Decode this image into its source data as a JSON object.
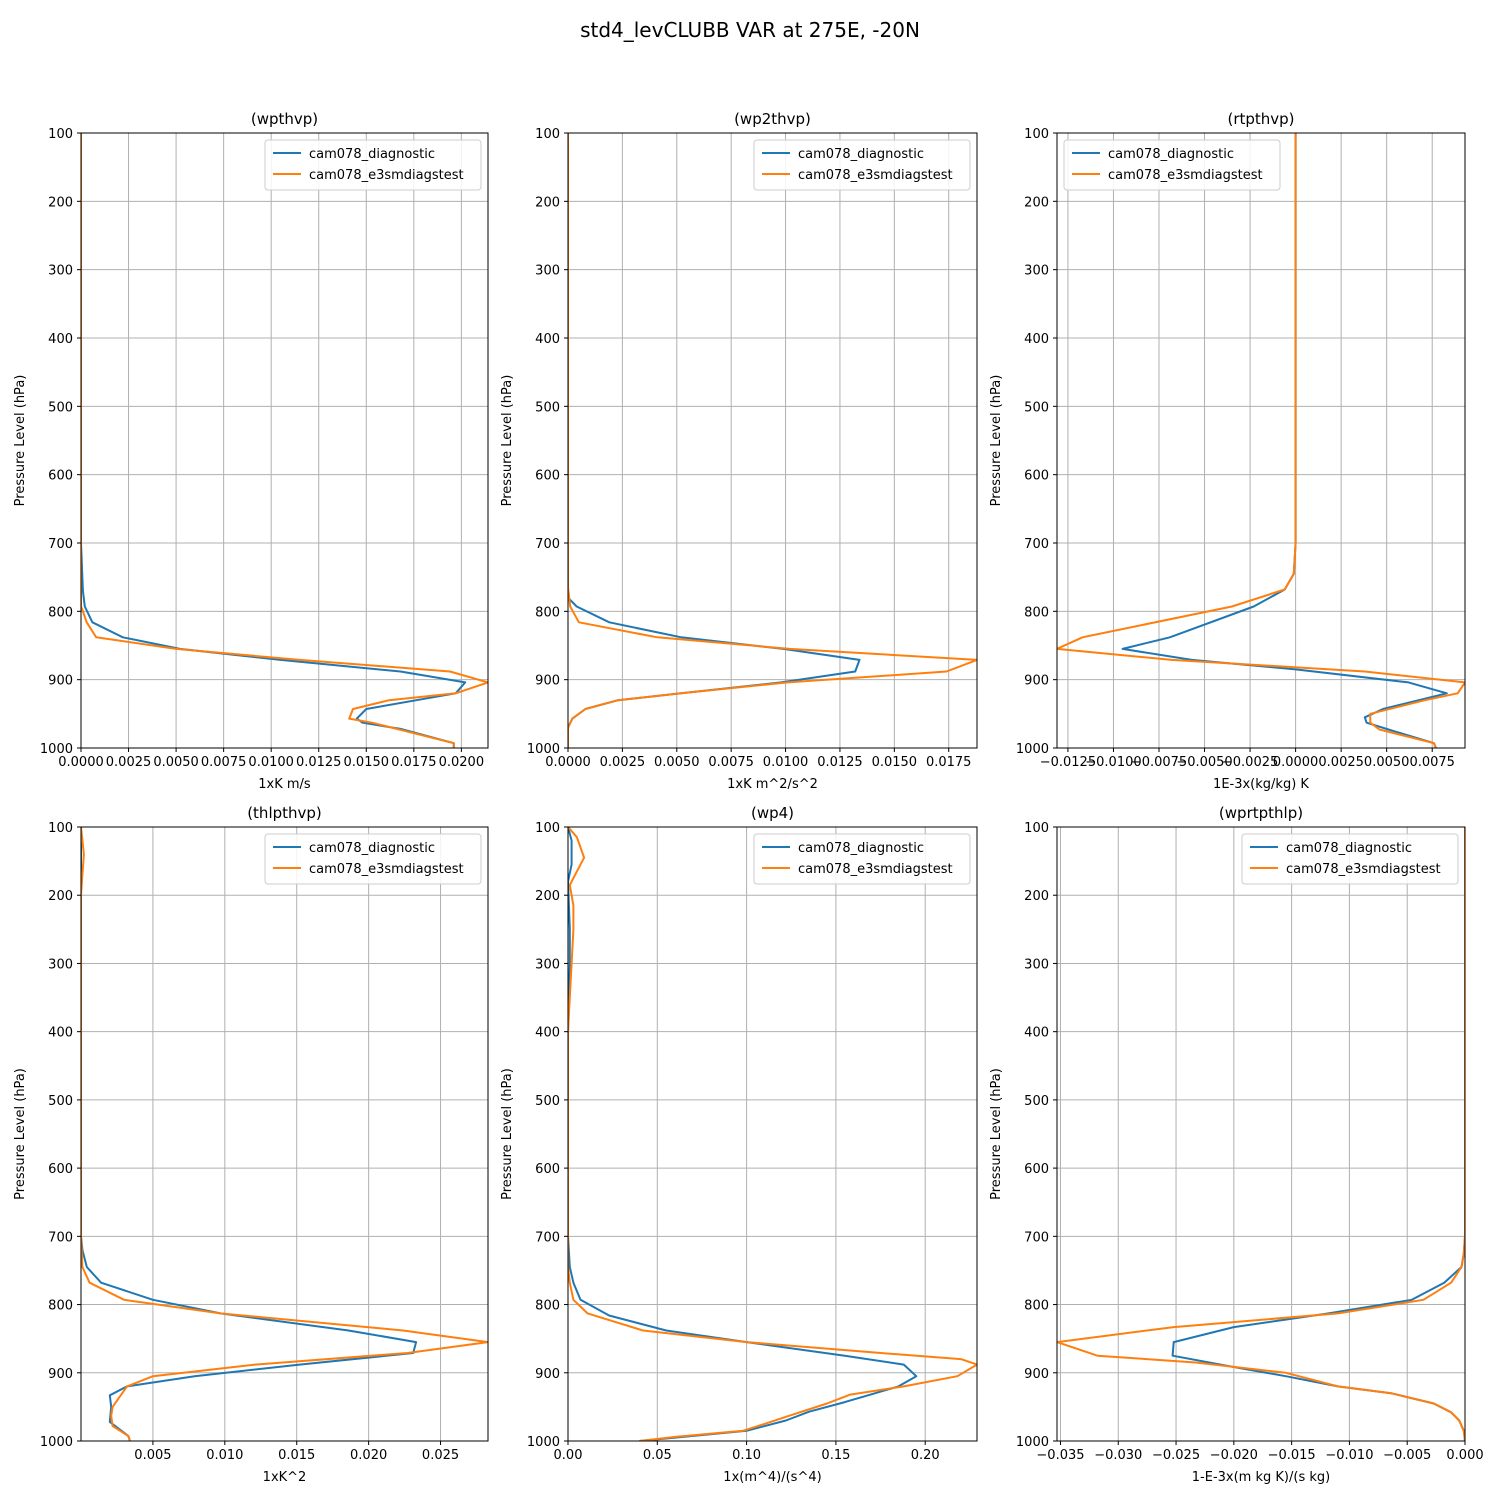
{
  "figure": {
    "suptitle": "std4_levCLUBB VAR at 275E, -20N",
    "colors": {
      "cam078_diagnostic": "#1f77b4",
      "cam078_e3smdiagstest": "#ff7f0e"
    }
  },
  "chart_data": [
    {
      "type": "line",
      "title": "(wpthvp)",
      "xlabel": "1xK m/s",
      "ylabel": "Pressure Level (hPa)",
      "xlim": [
        0.0,
        0.0214
      ],
      "ylim": [
        1000,
        100
      ],
      "y_inverted": true,
      "grid": true,
      "legend": "top-right",
      "xticks": [
        0.0,
        0.0025,
        0.005,
        0.0075,
        0.01,
        0.0125,
        0.015,
        0.0175,
        0.02
      ],
      "xticklabels": [
        "0.0000",
        "0.0025",
        "0.0050",
        "0.0075",
        "0.0100",
        "0.0125",
        "0.0150",
        "0.0175",
        "0.0200"
      ],
      "yticks": [
        100,
        200,
        300,
        400,
        500,
        600,
        700,
        800,
        900,
        1000
      ],
      "series": [
        {
          "name": "cam078_diagnostic",
          "color": "#1f77b4",
          "x": [
            0.0,
            0.0,
            0.0,
            0.0,
            0.0,
            0.0001,
            0.0002,
            0.0006,
            0.0022,
            0.0052,
            0.0105,
            0.0168,
            0.0202,
            0.0197,
            0.015,
            0.0145,
            0.0148,
            0.0168,
            0.0196,
            0.0196
          ],
          "y": [
            100,
            200,
            300,
            500,
            700,
            770,
            793,
            816,
            838,
            855,
            871,
            888,
            904,
            920,
            943,
            957,
            963,
            972,
            993,
            1000
          ]
        },
        {
          "name": "cam078_e3smdiagstest",
          "color": "#ff7f0e",
          "x": [
            0.0,
            0.0,
            0.0,
            0.0,
            0.0,
            0.0,
            0.0,
            0.0001,
            0.0003,
            0.0008,
            0.005,
            0.0115,
            0.0194,
            0.0214,
            0.0197,
            0.0162,
            0.0143,
            0.0141,
            0.0153,
            0.0196,
            0.0196
          ],
          "y": [
            100,
            200,
            300,
            500,
            700,
            770,
            793,
            800,
            816,
            838,
            855,
            871,
            888,
            904,
            920,
            930,
            943,
            957,
            963,
            993,
            1000
          ]
        }
      ]
    },
    {
      "type": "line",
      "title": "(wp2thvp)",
      "xlabel": "1xK m^2/s^2",
      "ylabel": "Pressure Level (hPa)",
      "xlim": [
        0.0,
        0.0188
      ],
      "ylim": [
        1000,
        100
      ],
      "y_inverted": true,
      "grid": true,
      "legend": "top-right",
      "xticks": [
        0.0,
        0.0025,
        0.005,
        0.0075,
        0.01,
        0.0125,
        0.015,
        0.0175
      ],
      "xticklabels": [
        "0.0000",
        "0.0025",
        "0.0050",
        "0.0075",
        "0.0100",
        "0.0125",
        "0.0150",
        "0.0175"
      ],
      "yticks": [
        100,
        200,
        300,
        400,
        500,
        600,
        700,
        800,
        900,
        1000
      ],
      "series": [
        {
          "name": "cam078_diagnostic",
          "color": "#1f77b4",
          "x": [
            0.0,
            0.0,
            0.0,
            0.0,
            0.0,
            0.0,
            0.0,
            0.0004,
            0.0019,
            0.0052,
            0.0099,
            0.0134,
            0.0132,
            0.0098,
            0.0052,
            0.0023,
            0.0008,
            0.0002,
            0.0,
            0.0
          ],
          "y": [
            100,
            200,
            300,
            500,
            700,
            765,
            780,
            793,
            816,
            838,
            855,
            871,
            888,
            904,
            920,
            930,
            943,
            957,
            970,
            1000
          ]
        },
        {
          "name": "cam078_e3smdiagstest",
          "color": "#ff7f0e",
          "x": [
            0.0,
            0.0,
            0.0,
            0.0,
            0.0,
            0.0,
            0.0001,
            0.0005,
            0.0041,
            0.0102,
            0.0188,
            0.0174,
            0.0101,
            0.0052,
            0.0023,
            0.0008,
            0.0002,
            0.0,
            0.0
          ],
          "y": [
            100,
            200,
            300,
            500,
            700,
            765,
            793,
            816,
            838,
            855,
            871,
            888,
            904,
            920,
            930,
            943,
            957,
            970,
            1000
          ]
        }
      ]
    },
    {
      "type": "line",
      "title": "(rtpthvp)",
      "xlabel": "1E-3x(kg/kg) K",
      "ylabel": "Pressure Level (hPa)",
      "xlim": [
        -0.0131,
        0.0093
      ],
      "ylim": [
        1000,
        100
      ],
      "y_inverted": true,
      "grid": true,
      "legend": "top-left",
      "xticks": [
        -0.0125,
        -0.01,
        -0.0075,
        -0.005,
        -0.0025,
        0.0,
        0.0025,
        0.005,
        0.0075
      ],
      "xticklabels": [
        "−0.0125",
        "−0.0100",
        "−0.0075",
        "−0.0050",
        "−0.0025",
        "0.0000",
        "0.0025",
        "0.0050",
        "0.0075"
      ],
      "yticks": [
        100,
        200,
        300,
        400,
        500,
        600,
        700,
        800,
        900,
        1000
      ],
      "series": [
        {
          "name": "cam078_diagnostic",
          "color": "#1f77b4",
          "x": [
            0.0,
            0.0,
            0.0,
            0.0,
            0.0,
            -0.0001,
            -0.0006,
            -0.0023,
            -0.0069,
            -0.0095,
            -0.0057,
            0.0,
            0.0062,
            0.0083,
            0.0048,
            0.0038,
            0.0039,
            0.0051,
            0.0076,
            0.0077
          ],
          "y": [
            100,
            200,
            300,
            500,
            700,
            745,
            768,
            793,
            838,
            855,
            871,
            885,
            904,
            920,
            943,
            955,
            963,
            973,
            993,
            1000
          ]
        },
        {
          "name": "cam078_e3smdiagstest",
          "color": "#ff7f0e",
          "x": [
            0.0,
            0.0,
            0.0,
            0.0,
            0.0,
            -0.0001,
            -0.0006,
            -0.0035,
            -0.0117,
            -0.0131,
            -0.0068,
            0.0038,
            0.0093,
            0.0089,
            0.0071,
            0.0041,
            0.0041,
            0.0046,
            0.0076,
            0.0077
          ],
          "y": [
            100,
            200,
            300,
            500,
            700,
            745,
            768,
            793,
            838,
            855,
            871,
            888,
            904,
            920,
            930,
            950,
            963,
            973,
            993,
            1000
          ]
        }
      ]
    },
    {
      "type": "line",
      "title": "(thlpthvp)",
      "xlabel": "1xK^2",
      "ylabel": "Pressure Level (hPa)",
      "xlim": [
        0.0,
        0.0283
      ],
      "ylim": [
        1000,
        100
      ],
      "y_inverted": true,
      "grid": true,
      "legend": "top-right",
      "xticks": [
        0.005,
        0.01,
        0.015,
        0.02,
        0.025
      ],
      "xticklabels": [
        "0.005",
        "0.010",
        "0.015",
        "0.020",
        "0.025"
      ],
      "yticks": [
        100,
        200,
        300,
        400,
        500,
        600,
        700,
        800,
        900,
        1000
      ],
      "series": [
        {
          "name": "cam078_diagnostic",
          "color": "#1f77b4",
          "x": [
            0.0,
            0.0,
            0.0,
            0.0,
            0.0,
            0.0001,
            0.0004,
            0.0014,
            0.005,
            0.0097,
            0.0186,
            0.0233,
            0.0231,
            0.0152,
            0.0079,
            0.0032,
            0.002,
            0.0021,
            0.002,
            0.0033,
            0.0034
          ],
          "y": [
            100,
            200,
            300,
            500,
            700,
            720,
            745,
            768,
            793,
            813,
            838,
            855,
            871,
            888,
            905,
            920,
            933,
            950,
            972,
            993,
            1000
          ]
        },
        {
          "name": "cam078_e3smdiagstest",
          "color": "#ff7f0e",
          "x": [
            0.0,
            0.0002,
            0.0001,
            0.0,
            0.0,
            0.0,
            0.0,
            0.0001,
            0.0006,
            0.003,
            0.0097,
            0.0224,
            0.0283,
            0.0227,
            0.0121,
            0.005,
            0.0032,
            0.0022,
            0.0021,
            0.0022,
            0.0033,
            0.0034
          ],
          "y": [
            100,
            140,
            170,
            200,
            300,
            500,
            700,
            745,
            768,
            793,
            813,
            838,
            855,
            871,
            888,
            905,
            920,
            950,
            963,
            978,
            993,
            1000
          ]
        }
      ]
    },
    {
      "type": "line",
      "title": "(wp4)",
      "xlabel": "1x(m^4)/(s^4)",
      "ylabel": "Pressure Level (hPa)",
      "xlim": [
        0.0,
        0.229
      ],
      "ylim": [
        1000,
        100
      ],
      "y_inverted": true,
      "grid": true,
      "legend": "top-right",
      "xticks": [
        0.0,
        0.05,
        0.1,
        0.15,
        0.2
      ],
      "xticklabels": [
        "0.00",
        "0.05",
        "0.10",
        "0.15",
        "0.20"
      ],
      "yticks": [
        100,
        200,
        300,
        400,
        500,
        600,
        700,
        800,
        900,
        1000
      ],
      "series": [
        {
          "name": "cam078_diagnostic",
          "color": "#1f77b4",
          "x": [
            0.0,
            0.002,
            0.002,
            0.0,
            0.001,
            0.001,
            0.0,
            0.0,
            0.0,
            0.001,
            0.003,
            0.007,
            0.023,
            0.055,
            0.1,
            0.155,
            0.188,
            0.195,
            0.185,
            0.155,
            0.135,
            0.122,
            0.1,
            0.06,
            0.04
          ],
          "y": [
            100,
            120,
            155,
            180,
            250,
            300,
            400,
            500,
            700,
            745,
            768,
            793,
            816,
            838,
            855,
            875,
            888,
            905,
            920,
            943,
            957,
            970,
            985,
            995,
            1000
          ]
        },
        {
          "name": "cam078_e3smdiagstest",
          "color": "#ff7f0e",
          "x": [
            0.0,
            0.005,
            0.009,
            0.004,
            0.001,
            0.003,
            0.003,
            0.002,
            0.0,
            0.0,
            0.0,
            0.0,
            0.001,
            0.003,
            0.011,
            0.042,
            0.1,
            0.17,
            0.22,
            0.229,
            0.218,
            0.188,
            0.158,
            0.145,
            0.125,
            0.11,
            0.098,
            0.06,
            0.04
          ],
          "y": [
            100,
            115,
            145,
            170,
            185,
            215,
            250,
            300,
            400,
            500,
            700,
            745,
            768,
            793,
            813,
            838,
            855,
            870,
            880,
            888,
            905,
            920,
            932,
            945,
            962,
            975,
            985,
            994,
            1000
          ]
        }
      ]
    },
    {
      "type": "line",
      "title": "(wprtpthlp)",
      "xlabel": "1-E-3x(m kg K)/(s kg)",
      "ylabel": "Pressure Level (hPa)",
      "xlim": [
        -0.0353,
        0.0
      ],
      "ylim": [
        1000,
        100
      ],
      "y_inverted": true,
      "grid": true,
      "legend": "top-right",
      "xticks": [
        -0.035,
        -0.03,
        -0.025,
        -0.02,
        -0.015,
        -0.01,
        -0.005,
        0.0
      ],
      "xticklabels": [
        "−0.035",
        "−0.030",
        "−0.025",
        "−0.020",
        "−0.015",
        "−0.010",
        "−0.005",
        "0.000"
      ],
      "yticks": [
        100,
        200,
        300,
        400,
        500,
        600,
        700,
        800,
        900,
        1000
      ],
      "series": [
        {
          "name": "cam078_diagnostic",
          "color": "#1f77b4",
          "x": [
            0.0,
            0.0,
            0.0,
            0.0,
            0.0,
            -0.0001,
            -0.0003,
            -0.0018,
            -0.0046,
            -0.0118,
            -0.02,
            -0.0252,
            -0.0253,
            -0.0205,
            -0.0155,
            -0.011,
            -0.0064,
            -0.0027,
            -0.0012,
            -0.0005,
            -0.0001,
            0.0
          ],
          "y": [
            100,
            200,
            300,
            500,
            700,
            725,
            745,
            768,
            793,
            813,
            833,
            855,
            875,
            890,
            905,
            920,
            930,
            945,
            958,
            970,
            985,
            1000
          ]
        },
        {
          "name": "cam078_e3smdiagstest",
          "color": "#ff7f0e",
          "x": [
            0.0,
            0.0,
            0.0,
            0.0,
            0.0,
            -0.0001,
            -0.0003,
            -0.0012,
            -0.0036,
            -0.011,
            -0.0252,
            -0.0353,
            -0.0318,
            -0.0233,
            -0.0155,
            -0.011,
            -0.0064,
            -0.0027,
            -0.0012,
            -0.0005,
            -0.0001,
            0.0
          ],
          "y": [
            100,
            200,
            300,
            500,
            700,
            725,
            745,
            768,
            793,
            813,
            833,
            855,
            875,
            885,
            900,
            920,
            930,
            945,
            958,
            970,
            985,
            1000
          ]
        }
      ]
    }
  ]
}
